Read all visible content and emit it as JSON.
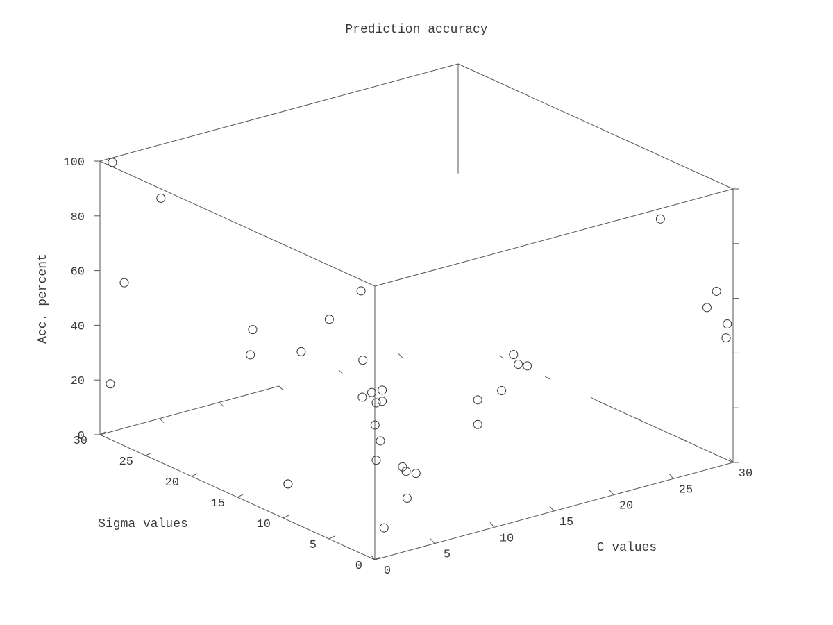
{
  "chart_data": {
    "type": "scatter",
    "title": "Prediction accuracy",
    "xlabel": "C values",
    "ylabel": "Sigma values",
    "zlabel": "Acc. percent",
    "xlim": [
      0,
      30
    ],
    "ylim": [
      0,
      30
    ],
    "zlim": [
      0,
      100
    ],
    "x_ticks": [
      "0",
      "5",
      "10",
      "15",
      "20",
      "25",
      "30"
    ],
    "y_ticks": [
      "0",
      "5",
      "10",
      "15",
      "20",
      "25",
      "30"
    ],
    "z_ticks": [
      "0",
      "20",
      "40",
      "60",
      "80",
      "100"
    ],
    "grid": false,
    "points": [
      {
        "x": 1,
        "y": 0.3,
        "z": 10.0
      },
      {
        "x": 5,
        "y": 3.0,
        "z": 12.0
      },
      {
        "x": 3.6,
        "y": 0.2,
        "z": 27.0
      },
      {
        "x": 0.2,
        "y": 0.6,
        "z": 60.0
      },
      {
        "x": 13,
        "y": 0.3,
        "z": 55.0
      },
      {
        "x": 0.4,
        "y": 10.0,
        "z": 12.0
      },
      {
        "x": 0.4,
        "y": 10.0,
        "z": 12.0
      },
      {
        "x": 0.7,
        "y": 14.5,
        "z": 52.0
      },
      {
        "x": 0.3,
        "y": 1.9,
        "z": 95.0
      },
      {
        "x": 0.1,
        "y": 5.1,
        "z": 80.0
      },
      {
        "x": 0.3,
        "y": 1.7,
        "z": 70.0
      },
      {
        "x": 0.5,
        "y": 29.3,
        "z": 100.0
      },
      {
        "x": 0.1,
        "y": 29.0,
        "z": 20.0
      },
      {
        "x": 0.5,
        "y": 24.0,
        "z": 95.0
      },
      {
        "x": 0.5,
        "y": 28.0,
        "z": 58.0
      },
      {
        "x": 1.2,
        "y": 14.9,
        "z": 60.0
      },
      {
        "x": 1.2,
        "y": 9.6,
        "z": 60.0
      },
      {
        "x": 2.0,
        "y": 2.0,
        "z": 38.0
      },
      {
        "x": 0.5,
        "y": 0.5,
        "z": 35.0
      },
      {
        "x": 29.0,
        "y": 0.5,
        "z": 63.0
      },
      {
        "x": 24.3,
        "y": 0.5,
        "z": 95.0
      },
      {
        "x": 28.2,
        "y": 0.5,
        "z": 58.0
      },
      {
        "x": 29.9,
        "y": 0.5,
        "z": 50.0
      },
      {
        "x": 29.8,
        "y": 0.5,
        "z": 45.0
      },
      {
        "x": 11.0,
        "y": 0.5,
        "z": 48.0
      },
      {
        "x": 12.0,
        "y": 0.5,
        "z": 60.0
      },
      {
        "x": 12.4,
        "y": 0.5,
        "z": 56.0
      },
      {
        "x": 9.0,
        "y": 0.5,
        "z": 47.0
      },
      {
        "x": 9.0,
        "y": 0.5,
        "z": 38.0
      },
      {
        "x": 1.0,
        "y": 0.5,
        "z": 60.0
      },
      {
        "x": 1.0,
        "y": 0.5,
        "z": 56.0
      },
      {
        "x": 0.5,
        "y": 0.5,
        "z": 56.0
      },
      {
        "x": 0.4,
        "y": 0.5,
        "z": 48.0
      },
      {
        "x": 0.1,
        "y": 1.5,
        "z": 57.0
      },
      {
        "x": 2.7,
        "y": 0.5,
        "z": 30.0
      },
      {
        "x": 3.0,
        "y": 0.5,
        "z": 28.0
      }
    ]
  }
}
